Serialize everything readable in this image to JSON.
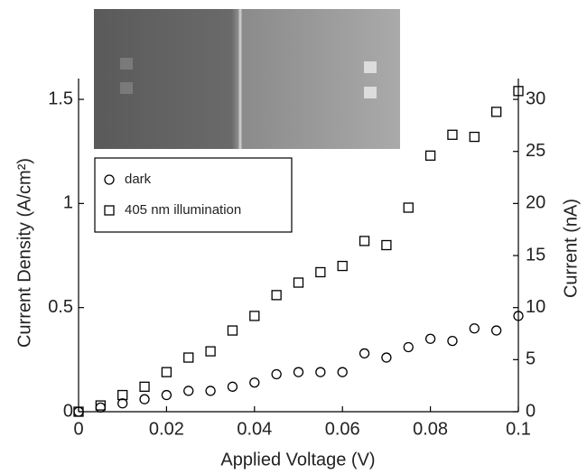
{
  "chart_data": {
    "type": "scatter",
    "xlabel": "Applied Voltage (V)",
    "ylabel": "Current Density (A/cm²)",
    "y2label": "Current (nA)",
    "x": [
      0,
      0.005,
      0.01,
      0.015,
      0.02,
      0.025,
      0.03,
      0.035,
      0.04,
      0.045,
      0.05,
      0.055,
      0.06,
      0.065,
      0.07,
      0.075,
      0.08,
      0.085,
      0.09,
      0.095,
      0.1
    ],
    "series": [
      {
        "name": "dark",
        "marker": "circle",
        "color": "#000000",
        "values": [
          0,
          0.02,
          0.04,
          0.06,
          0.08,
          0.1,
          0.1,
          0.12,
          0.14,
          0.18,
          0.19,
          0.19,
          0.19,
          0.28,
          0.26,
          0.31,
          0.35,
          0.34,
          0.4,
          0.39,
          0.46
        ]
      },
      {
        "name": "405 nm illumination",
        "marker": "square",
        "color": "#000000",
        "values": [
          0,
          0.03,
          0.08,
          0.12,
          0.19,
          0.26,
          0.29,
          0.39,
          0.46,
          0.56,
          0.62,
          0.67,
          0.7,
          0.82,
          0.8,
          0.98,
          1.23,
          1.33,
          1.32,
          1.44,
          1.54
        ]
      }
    ],
    "xlim": [
      0,
      0.1
    ],
    "xticks": [
      0,
      0.02,
      0.04,
      0.06,
      0.08,
      0.1
    ],
    "ylim": [
      0,
      1.6
    ],
    "yticks": [
      0,
      0.5,
      1,
      1.5
    ],
    "y2lim": [
      0,
      32
    ],
    "y2ticks": [
      0,
      5,
      10,
      15,
      20,
      25,
      30
    ],
    "grid": false,
    "legend": "upper left"
  }
}
